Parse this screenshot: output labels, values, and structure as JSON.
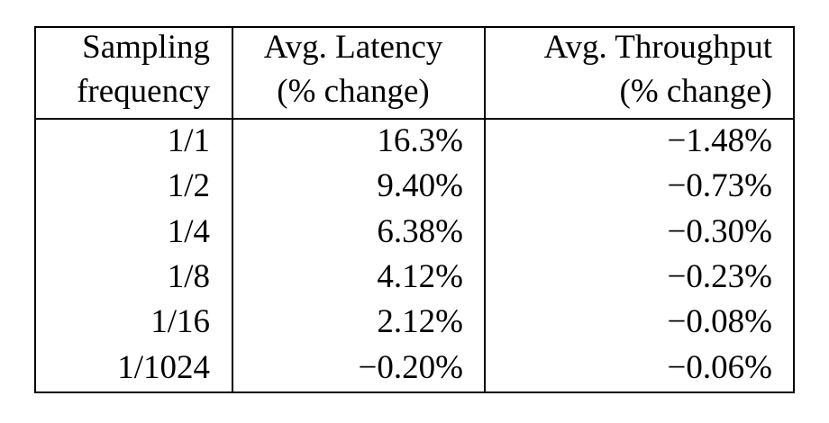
{
  "table": {
    "headers": [
      {
        "line1": "Sampling",
        "line2": "frequency"
      },
      {
        "line1": "Avg. Latency",
        "line2": "(% change)"
      },
      {
        "line1": "Avg. Throughput",
        "line2": "(% change)"
      }
    ],
    "rows": [
      {
        "frequency": "1/1",
        "latency": "16.3%",
        "throughput": "−1.48%"
      },
      {
        "frequency": "1/2",
        "latency": "9.40%",
        "throughput": "−0.73%"
      },
      {
        "frequency": "1/4",
        "latency": "6.38%",
        "throughput": "−0.30%"
      },
      {
        "frequency": "1/8",
        "latency": "4.12%",
        "throughput": "−0.23%"
      },
      {
        "frequency": "1/16",
        "latency": "2.12%",
        "throughput": "−0.08%"
      },
      {
        "frequency": "1/1024",
        "latency": "−0.20%",
        "throughput": "−0.06%"
      }
    ]
  }
}
